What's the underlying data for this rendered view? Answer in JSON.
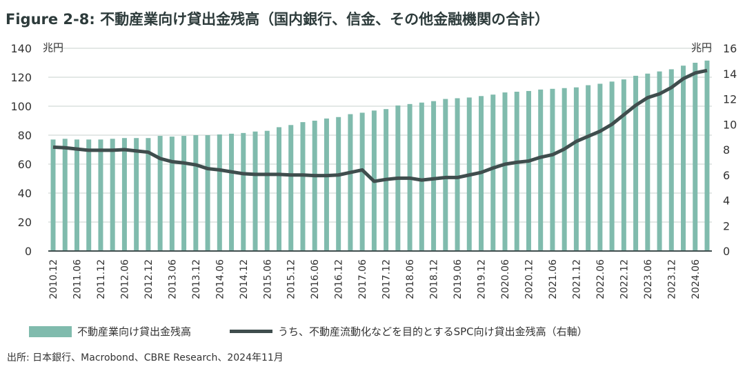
{
  "title": "Figure 2-8: 不動産業向け貸出金残高（国内銀行、信金、その他金融機関の合計）",
  "source": "出所: 日本銀行、Macrobond、CBRE Research、2024年11月",
  "chart_data": {
    "type": "bar+line",
    "title": "Figure 2-8: 不動産業向け貸出金残高（国内銀行、信金、その他金融機関の合計）",
    "left_unit": "兆円",
    "right_unit": "兆円",
    "ylim": [
      0,
      140
    ],
    "yticks": [
      0,
      20,
      40,
      60,
      80,
      100,
      120,
      140
    ],
    "y2lim": [
      0,
      16
    ],
    "y2ticks": [
      0,
      2,
      4,
      6,
      8,
      10,
      12,
      14,
      16
    ],
    "start": "2010.12",
    "frequency": "quarterly",
    "tick_labels": [
      "2010.12",
      "2011.06",
      "2011.12",
      "2012.06",
      "2012.12",
      "2013.06",
      "2013.12",
      "2014.06",
      "2014.12",
      "2015.06",
      "2015.12",
      "2016.06",
      "2016.12",
      "2017.06",
      "2017.12",
      "2018.06",
      "2018.12",
      "2019.06",
      "2019.12",
      "2020.06",
      "2020.12",
      "2021.06",
      "2021.12",
      "2022.06",
      "2022.12",
      "2023.06",
      "2023.12",
      "2024.06"
    ],
    "series": [
      {
        "name": "不動産業向け貸出金残高",
        "type": "bar",
        "axis": "left",
        "color": "#80bbad",
        "values": [
          77,
          77.5,
          77,
          77,
          77,
          77.5,
          78,
          78,
          78,
          79.5,
          79,
          79.5,
          80,
          80,
          80.5,
          81,
          81.5,
          82.5,
          83,
          85.5,
          87,
          89,
          90,
          91.5,
          92.5,
          94.5,
          95.5,
          97,
          98,
          100.5,
          101.5,
          102.5,
          103.5,
          105,
          105.5,
          106,
          107,
          108,
          109.5,
          110,
          110.5,
          111.5,
          112,
          112.5,
          113,
          114.5,
          115.5,
          117,
          118.5,
          121,
          122.5,
          124,
          125.5,
          128,
          130,
          131.5
        ]
      },
      {
        "name": "うち、不動産流動化などを目的とするSPC向け貸出金残高（右軸）",
        "type": "line",
        "axis": "right",
        "color": "#3f4d4d",
        "values": [
          8.2,
          8.15,
          8.05,
          7.95,
          7.95,
          7.95,
          8.0,
          7.9,
          7.8,
          7.3,
          7.05,
          6.95,
          6.8,
          6.5,
          6.4,
          6.25,
          6.1,
          6.05,
          6.05,
          6.05,
          6.0,
          6.0,
          5.95,
          5.95,
          6.0,
          6.2,
          6.4,
          5.5,
          5.65,
          5.75,
          5.75,
          5.6,
          5.7,
          5.8,
          5.8,
          6.0,
          6.2,
          6.55,
          6.85,
          7.0,
          7.1,
          7.4,
          7.6,
          8.05,
          8.65,
          9.05,
          9.45,
          10.0,
          10.75,
          11.5,
          12.1,
          12.4,
          12.9,
          13.6,
          14.05,
          14.25
        ]
      }
    ]
  }
}
